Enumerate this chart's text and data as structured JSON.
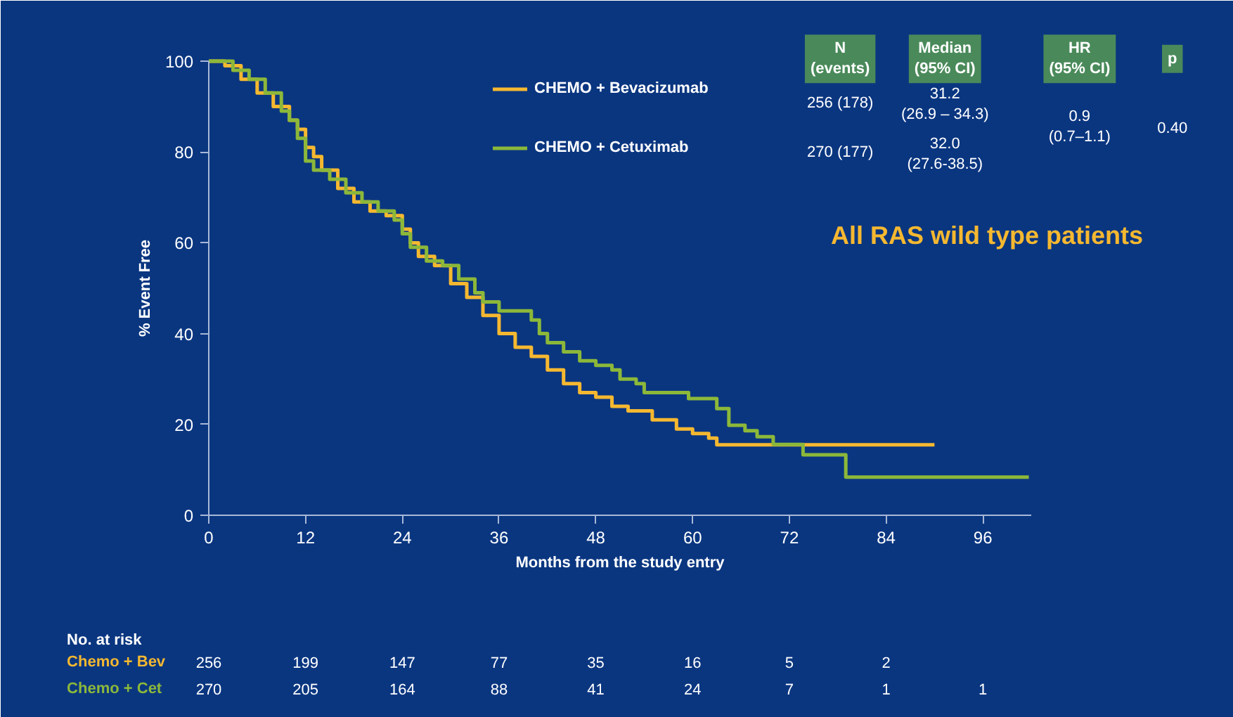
{
  "chart_data": {
    "type": "step",
    "title": "All RAS wild type patients",
    "xlabel": "Months from the study entry",
    "ylabel": "% Event Free",
    "xlim": [
      0,
      102
    ],
    "ylim": [
      0,
      100
    ],
    "xticks": [
      0,
      12,
      24,
      36,
      48,
      60,
      72,
      84,
      96
    ],
    "yticks": [
      0,
      20,
      40,
      60,
      80,
      100
    ],
    "grid": false,
    "legend": "top",
    "marker": "none",
    "line_style": "solid",
    "series": [
      {
        "name": "CHEMO + Bevacizumab",
        "color": "#f5b830",
        "x": [
          0,
          2,
          4,
          6,
          8,
          10,
          11,
          12,
          13,
          14,
          16,
          18,
          20,
          22,
          24,
          25,
          26,
          28,
          30,
          32,
          34,
          36,
          38,
          40,
          42,
          44,
          46,
          48,
          50,
          52,
          55,
          58,
          60,
          62,
          63,
          90
        ],
        "values": [
          100,
          99,
          96,
          93,
          90,
          87,
          85,
          81,
          79,
          76,
          72,
          69,
          67,
          66,
          63,
          60,
          57,
          55,
          51,
          48,
          44,
          40,
          37,
          35,
          32,
          29,
          27,
          26,
          24,
          23,
          21,
          19,
          18,
          17,
          15.5,
          15.5
        ]
      },
      {
        "name": "CHEMO + Cetuximab",
        "color": "#8cb83a",
        "x": [
          0,
          3,
          5,
          7,
          9,
          10,
          11,
          12,
          13,
          15,
          17,
          19,
          21,
          23,
          24,
          25,
          27,
          29,
          31,
          33,
          34,
          36,
          39,
          40,
          41,
          42,
          44,
          46,
          48,
          50,
          51,
          53,
          54,
          59.5,
          61,
          63,
          64.5,
          66.5,
          68,
          70,
          73.7,
          79,
          101.7
        ],
        "values": [
          100,
          98,
          96,
          93,
          89,
          87,
          83,
          78,
          76,
          74,
          71,
          69,
          67,
          65,
          62,
          59,
          56,
          55,
          52,
          49,
          47,
          45,
          45,
          43,
          40,
          38,
          36,
          34,
          33,
          32,
          30,
          29,
          27,
          25.7,
          25.7,
          23.5,
          19.8,
          18.6,
          17.3,
          15.6,
          13.3,
          8.4,
          8.4
        ]
      }
    ],
    "annotations": [
      "N\n(events)",
      "Median\n(95% CI)",
      "HR\n(95% CI)",
      "p",
      "256 (178)",
      "31.2\n(26.9 – 34.3)",
      "270 (177)",
      "32.0\n(27.6-38.5)",
      "0.9\n(0.7–1.1)",
      "0.40",
      "No. at risk",
      "Chemo + Bev",
      "256",
      "199",
      "147",
      "77",
      "35",
      "16",
      "5",
      "2",
      "Chemo + Cet",
      "270",
      "205",
      "164",
      "88",
      "41",
      "24",
      "7",
      "1",
      "1"
    ]
  }
}
